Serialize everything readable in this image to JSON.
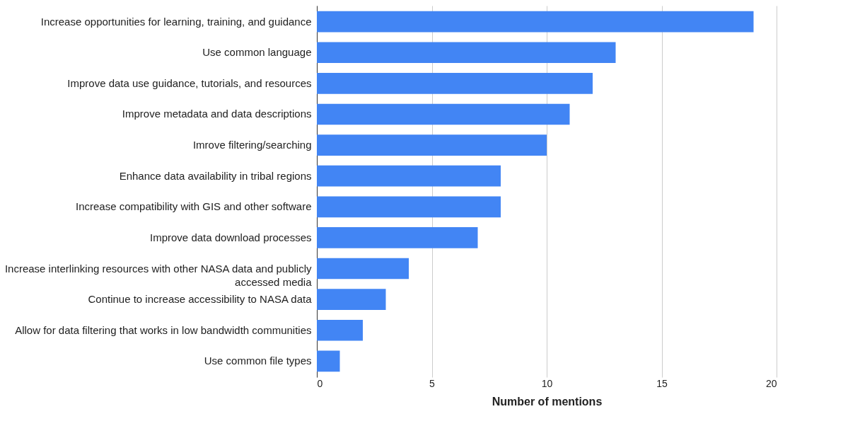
{
  "chart_data": {
    "type": "bar",
    "orientation": "horizontal",
    "xlabel": "Number of mentions",
    "categories": [
      "Increase opportunities for learning, training, and guidance",
      "Use common language",
      "Improve data use guidance, tutorials, and resources",
      "Improve metadata and data descriptions",
      "Imrove filtering/searching",
      "Enhance data availability in tribal regions",
      "Increase compatibility with GIS and other software",
      "Improve data download processes",
      "Increase interlinking resources with other NASA data and publicly accessed media",
      "Continue to increase accessibility to NASA data",
      "Allow for data filtering that works in low bandwidth communities",
      "Use common file types"
    ],
    "values": [
      19,
      13,
      12,
      11,
      10,
      8,
      8,
      7,
      4,
      3,
      2,
      1
    ],
    "color": "#4285f4",
    "xlim": [
      0,
      20
    ],
    "xticks": [
      0,
      5,
      10,
      15,
      20
    ],
    "grid": "x"
  }
}
